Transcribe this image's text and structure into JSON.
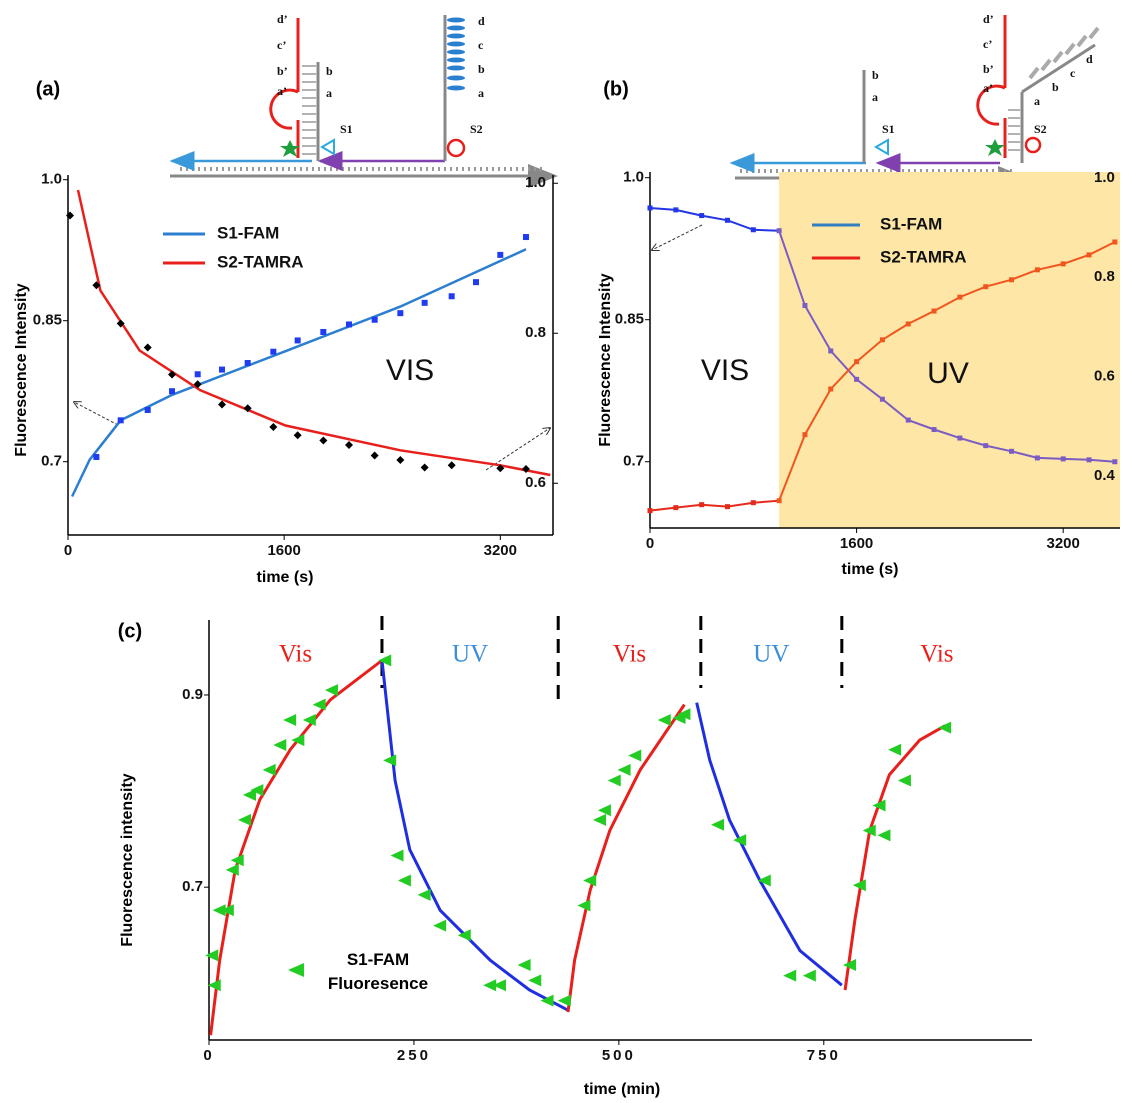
{
  "chart_data": [
    {
      "type": "scatter",
      "panel_label": "(a)",
      "x_label": "time (s)",
      "y_label": "Fluorescence Intensity",
      "xlim": [
        0,
        3590
      ],
      "xticks": [
        0,
        1600,
        3200
      ],
      "ylim": [
        0.622,
        1.005
      ],
      "yticks": [
        0.7,
        0.85,
        {
          "value": 1,
          "label": "1.0"
        }
      ],
      "y2lim": [
        0.531,
        1.011
      ],
      "y2ticks": [
        0.6,
        0.8,
        {
          "value": 1,
          "label": "1.0"
        }
      ],
      "annotations": [
        "VIS"
      ],
      "series": [
        {
          "name": "S1-FAM",
          "color": "#2c7fd0",
          "marker": "square",
          "marker_color": "#1f3cf2",
          "x": [
            210,
            390,
            590,
            770,
            960,
            1140,
            1330,
            1520,
            1700,
            1890,
            2080,
            2270,
            2460,
            2640,
            2840,
            3020,
            3200,
            3390
          ],
          "values": [
            0.705,
            0.744,
            0.755,
            0.775,
            0.793,
            0.798,
            0.805,
            0.817,
            0.829,
            0.838,
            0.846,
            0.851,
            0.858,
            0.869,
            0.876,
            0.891,
            0.92,
            0.939
          ],
          "fit_x": [
            30,
            160,
            390,
            770,
            1600,
            2460,
            3390
          ],
          "fit_values": [
            0.663,
            0.702,
            0.744,
            0.771,
            0.817,
            0.865,
            0.926
          ]
        },
        {
          "name": "S2-TAMRA",
          "color": "#e8201c",
          "marker": "diamond",
          "marker_color": "#000000",
          "axis": "y2",
          "x": [
            15,
            210,
            390,
            590,
            770,
            960,
            1140,
            1330,
            1520,
            1700,
            1890,
            2080,
            2270,
            2460,
            2640,
            2840,
            3200,
            3390
          ],
          "values": [
            0.957,
            0.864,
            0.813,
            0.781,
            0.745,
            0.732,
            0.705,
            0.7,
            0.675,
            0.664,
            0.657,
            0.651,
            0.637,
            0.631,
            0.621,
            0.624,
            0.62,
            0.619
          ],
          "fit_x": [
            74,
            240,
            530,
            980,
            1610,
            2460,
            3200,
            3570
          ],
          "fit_values": [
            0.991,
            0.857,
            0.777,
            0.724,
            0.677,
            0.644,
            0.624,
            0.611
          ]
        }
      ]
    },
    {
      "type": "line",
      "panel_label": "(b)",
      "x_label": "time (s)",
      "y_label": "Fluorescence Intensity",
      "xlim": [
        0,
        3640
      ],
      "xticks": [
        0,
        1600,
        3200
      ],
      "ylim": [
        0.63,
        1.006
      ],
      "yticks": [
        0.7,
        0.85,
        {
          "value": 1,
          "label": "1.0"
        }
      ],
      "y2lim": [
        0.295,
        1.012
      ],
      "y2ticks": [
        0.4,
        0.6,
        0.8,
        {
          "value": 1,
          "label": "1.0"
        }
      ],
      "uv_region": [
        1000,
        3640
      ],
      "uv_region_color": "#fde6a6",
      "annotations": [
        "VIS",
        "UV"
      ],
      "series": [
        {
          "name": "S1-FAM",
          "color": "#2f7fc1",
          "line_color": "#2236e6",
          "uv_color": "#7b5cc2",
          "x": [
            0,
            200,
            400,
            600,
            800,
            1000,
            1200,
            1400,
            1600,
            1800,
            2000,
            2200,
            2400,
            2600,
            2800,
            3000,
            3200,
            3400,
            3600
          ],
          "values": [
            0.968,
            0.966,
            0.96,
            0.955,
            0.945,
            0.944,
            0.865,
            0.817,
            0.787,
            0.766,
            0.744,
            0.734,
            0.725,
            0.717,
            0.711,
            0.704,
            0.703,
            0.702,
            0.7
          ]
        },
        {
          "name": "S2-TAMRA",
          "color": "#e8201c",
          "line_color": "#e52a1c",
          "uv_color": "#f0561e",
          "axis": "y2",
          "x": [
            0,
            200,
            400,
            600,
            800,
            1000,
            1200,
            1400,
            1600,
            1800,
            2000,
            2200,
            2400,
            2600,
            2800,
            3000,
            3200,
            3400,
            3600
          ],
          "values": [
            0.33,
            0.336,
            0.342,
            0.338,
            0.346,
            0.35,
            0.483,
            0.575,
            0.63,
            0.674,
            0.706,
            0.732,
            0.76,
            0.781,
            0.795,
            0.815,
            0.827,
            0.845,
            0.871
          ]
        }
      ]
    },
    {
      "type": "scatter",
      "panel_label": "(c)",
      "x_label": "time  (min)",
      "y_label": "Fluorescence intensity",
      "xlim": [
        0,
        1004
      ],
      "xticks": [
        0,
        250,
        500,
        750
      ],
      "ylim": [
        0.541,
        0.978
      ],
      "yticks": [
        0.7,
        0.9
      ],
      "phase_dividers": [
        211,
        426,
        600,
        772
      ],
      "phases": [
        {
          "label": "Vis",
          "color": "#e8201c"
        },
        {
          "label": "UV",
          "color": "#3a8fd8"
        },
        {
          "label": "Vis",
          "color": "#e8201c"
        },
        {
          "label": "UV",
          "color": "#3a8fd8"
        },
        {
          "label": "Vis",
          "color": "#e8201c"
        }
      ],
      "fits": [
        {
          "color": "#e8201c",
          "x": [
            2,
            13,
            32,
            62,
            99,
            148,
            211
          ],
          "values": [
            0.546,
            0.624,
            0.718,
            0.791,
            0.843,
            0.895,
            0.936
          ]
        },
        {
          "color": "#1f2fe0",
          "x": [
            211,
            227,
            245,
            282,
            343,
            391,
            438
          ],
          "values": [
            0.936,
            0.811,
            0.739,
            0.676,
            0.624,
            0.593,
            0.572
          ]
        },
        {
          "color": "#e8201c",
          "x": [
            438,
            446,
            465,
            489,
            526,
            580
          ],
          "values": [
            0.57,
            0.624,
            0.697,
            0.759,
            0.822,
            0.89
          ]
        },
        {
          "color": "#1f2fe0",
          "x": [
            595,
            611,
            635,
            672,
            721,
            772
          ],
          "values": [
            0.892,
            0.832,
            0.77,
            0.707,
            0.634,
            0.598
          ]
        },
        {
          "color": "#e8201c",
          "x": [
            776,
            788,
            806,
            830,
            867,
            898
          ],
          "values": [
            0.593,
            0.666,
            0.759,
            0.817,
            0.853,
            0.868
          ]
        }
      ],
      "series": [
        {
          "name": "S1-FAM Fluoresence",
          "color": "#22cc22",
          "marker": "triangle-left",
          "x": [
            4,
            7,
            13,
            23,
            29,
            35,
            44,
            50,
            59,
            74,
            87,
            99,
            109,
            123,
            135,
            150,
            215,
            221,
            230,
            239,
            263,
            282,
            312,
            343,
            355,
            385,
            398,
            413,
            434,
            458,
            465,
            477,
            483,
            495,
            507,
            520,
            556,
            574,
            580,
            621,
            648,
            678,
            709,
            733,
            782,
            794,
            806,
            818,
            824,
            837,
            849,
            898
          ],
          "values": [
            0.629,
            0.598,
            0.676,
            0.676,
            0.718,
            0.728,
            0.77,
            0.796,
            0.801,
            0.822,
            0.848,
            0.874,
            0.853,
            0.874,
            0.89,
            0.905,
            0.936,
            0.832,
            0.733,
            0.707,
            0.692,
            0.66,
            0.65,
            0.598,
            0.598,
            0.619,
            0.603,
            0.582,
            0.582,
            0.681,
            0.707,
            0.77,
            0.78,
            0.811,
            0.822,
            0.837,
            0.874,
            0.876,
            0.88,
            0.765,
            0.749,
            0.707,
            0.608,
            0.608,
            0.619,
            0.702,
            0.759,
            0.785,
            0.754,
            0.843,
            0.811,
            0.866
          ]
        }
      ]
    }
  ],
  "schematics": [
    {
      "labels": [
        "d’",
        "c’",
        "b’",
        "a’",
        "b",
        "a",
        "S1",
        "d",
        "c",
        "b",
        "a",
        "S2"
      ]
    },
    {
      "labels": [
        "b",
        "a",
        "S1",
        "d’",
        "c’",
        "b’",
        "a’",
        "a",
        "b",
        "c",
        "d",
        "S2"
      ]
    }
  ]
}
